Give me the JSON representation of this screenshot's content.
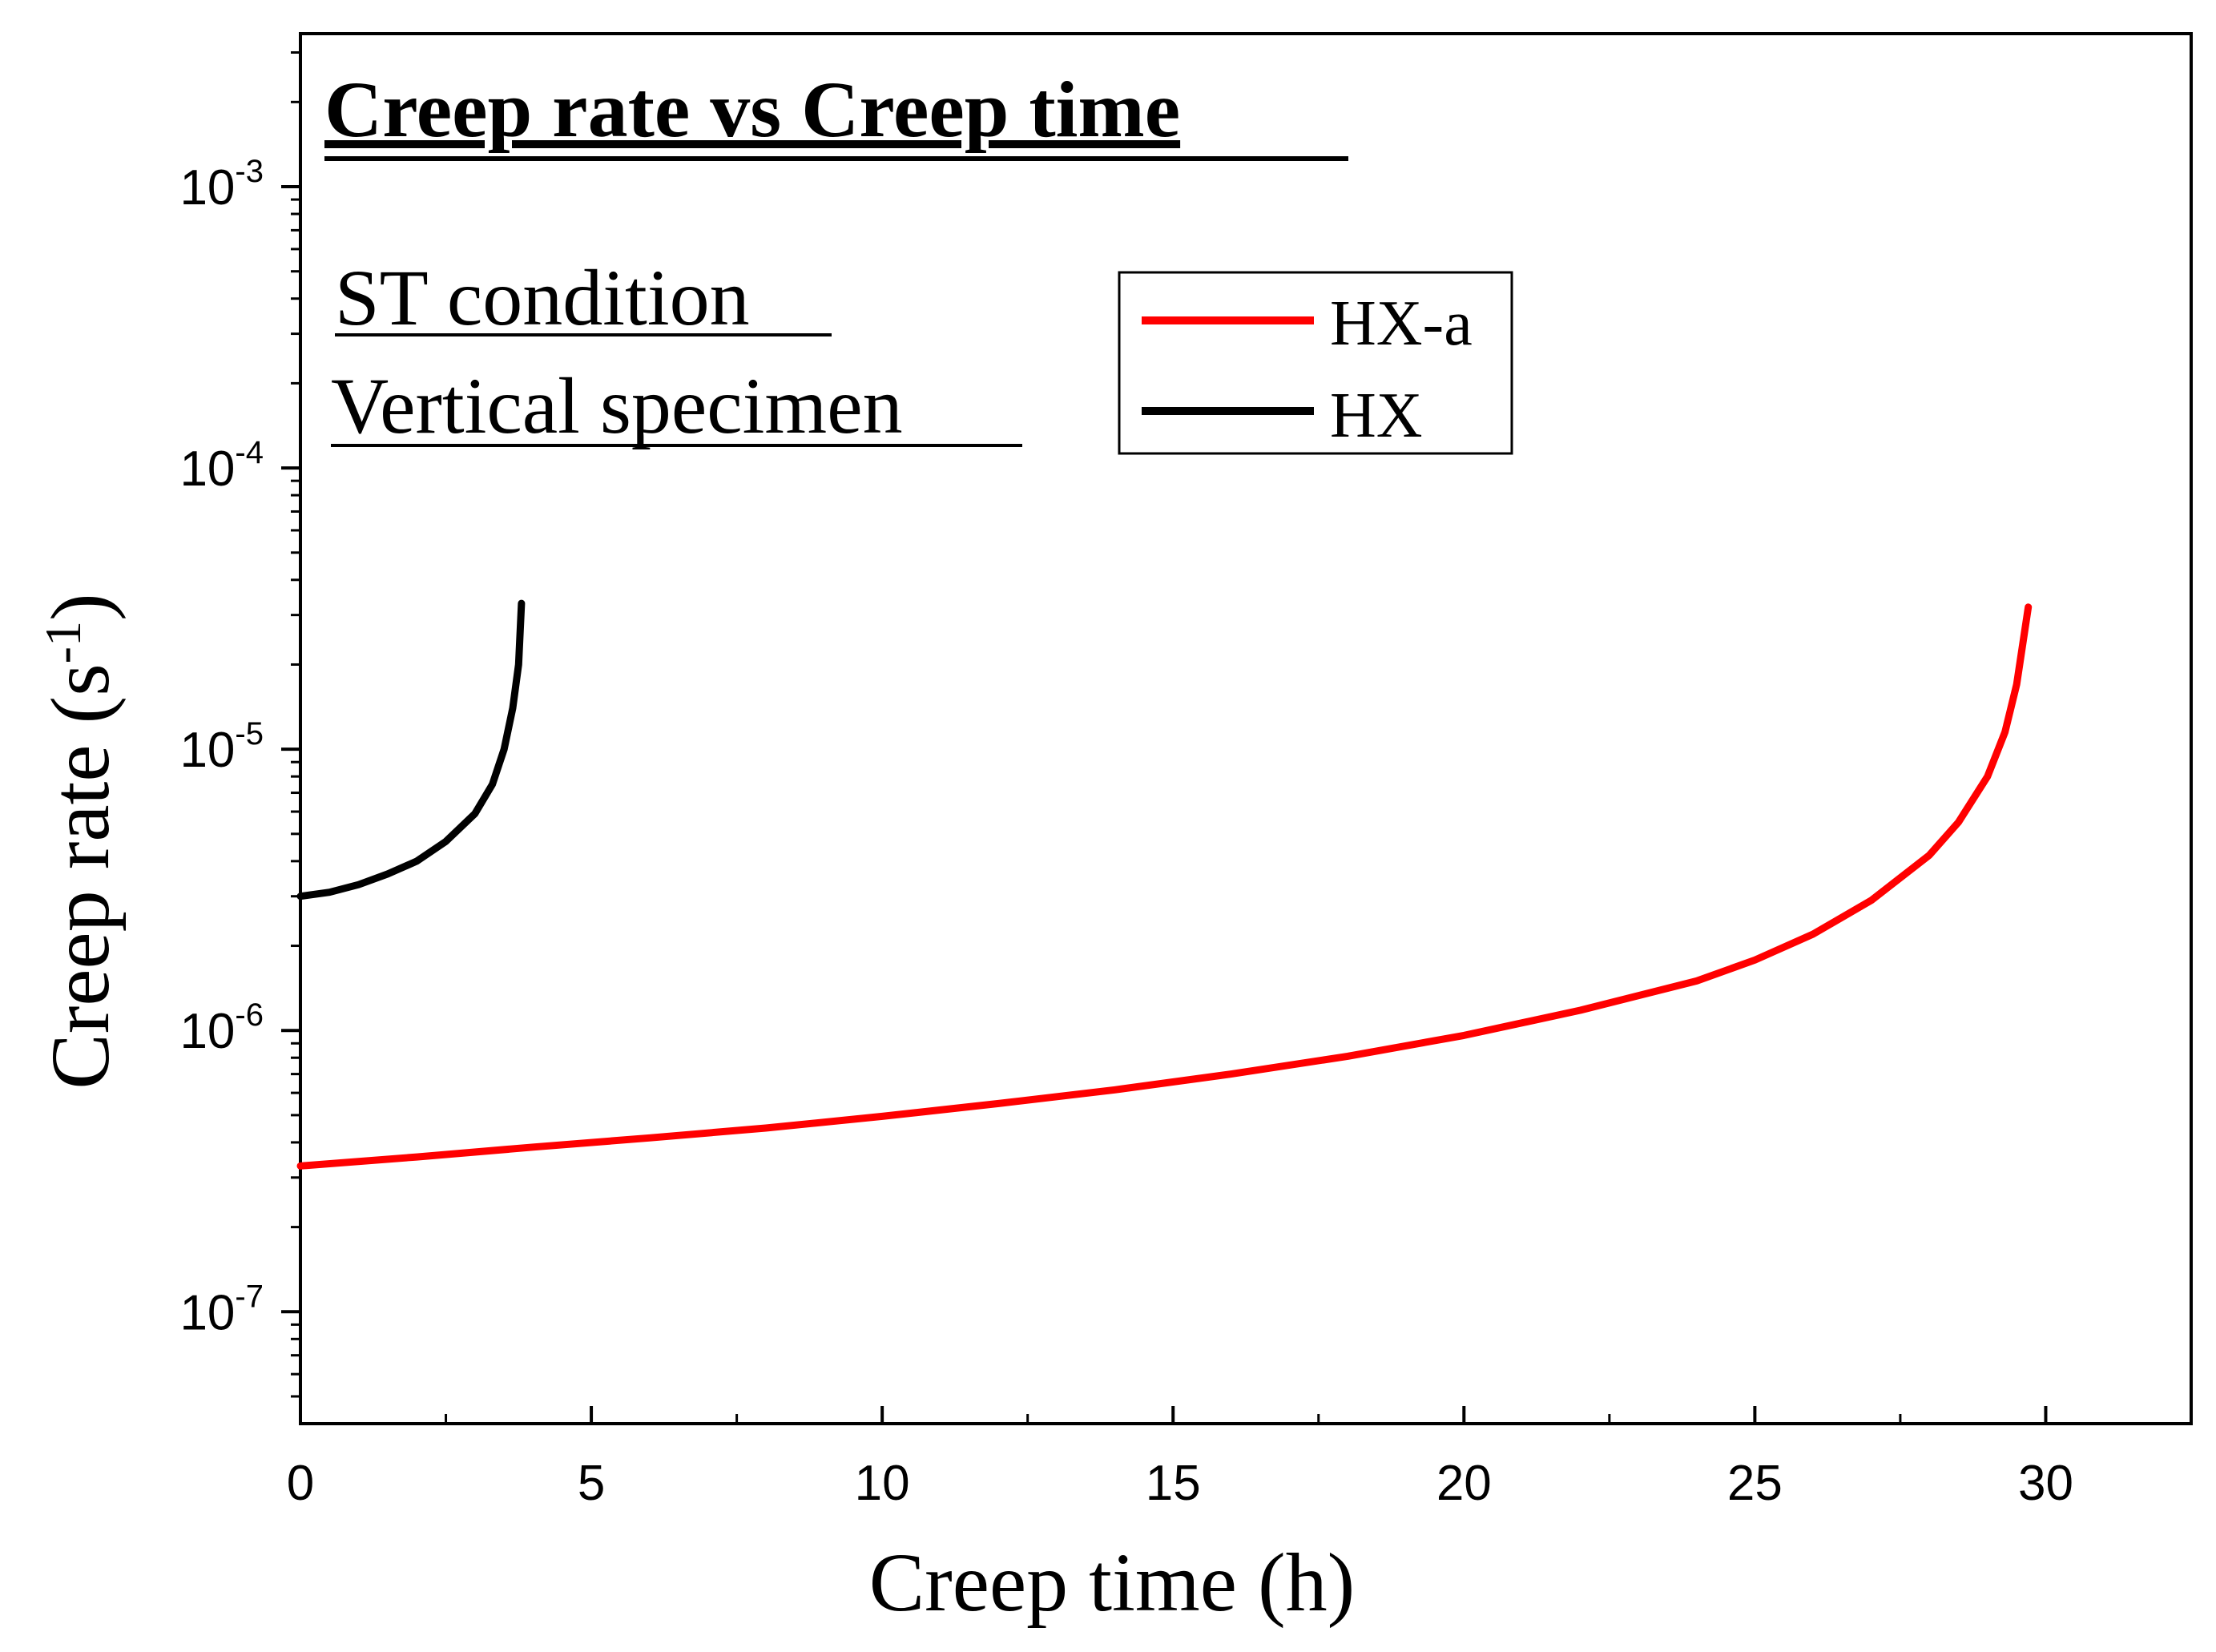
{
  "chart_data": {
    "type": "line",
    "title": "Creep rate vs Creep time",
    "annotations": [
      "ST condition",
      "Vertical specimen"
    ],
    "xlabel": "Creep time (h)",
    "ylabel": {
      "base": "Creep rate (s",
      "sup": "-1",
      "tail": ")"
    },
    "x_scale": "linear",
    "y_scale": "log",
    "xlim": [
      0,
      32.5
    ],
    "ylim": [
      4e-08,
      0.0035
    ],
    "x_ticks": [
      0,
      5,
      10,
      15,
      20,
      25,
      30
    ],
    "y_ticks": [
      {
        "value": 1e-07,
        "base": "10",
        "exp": "-7"
      },
      {
        "value": 1e-06,
        "base": "10",
        "exp": "-6"
      },
      {
        "value": 1e-05,
        "base": "10",
        "exp": "-5"
      },
      {
        "value": 0.0001,
        "base": "10",
        "exp": "-4"
      },
      {
        "value": 0.001,
        "base": "10",
        "exp": "-3"
      }
    ],
    "legend_position": "top-right",
    "series": [
      {
        "name": "HX-a",
        "color": "#ff0000",
        "x": [
          0,
          2,
          4,
          6,
          8,
          10,
          12,
          14,
          16,
          18,
          20,
          22,
          24,
          25,
          26,
          27,
          28,
          28.5,
          29,
          29.3,
          29.5,
          29.7
        ],
        "y": [
          3.3e-07,
          3.55e-07,
          3.85e-07,
          4.15e-07,
          4.5e-07,
          4.95e-07,
          5.5e-07,
          6.15e-07,
          7e-07,
          8.1e-07,
          9.6e-07,
          1.18e-06,
          1.5e-06,
          1.78e-06,
          2.2e-06,
          2.9e-06,
          4.2e-06,
          5.5e-06,
          8e-06,
          1.15e-05,
          1.7e-05,
          3.2e-05
        ]
      },
      {
        "name": "HX",
        "color": "#000000",
        "x": [
          0,
          0.5,
          1,
          1.5,
          2,
          2.5,
          3,
          3.3,
          3.5,
          3.65,
          3.75,
          3.8
        ],
        "y": [
          3e-06,
          3.1e-06,
          3.3e-06,
          3.6e-06,
          4e-06,
          4.7e-06,
          5.9e-06,
          7.5e-06,
          1e-05,
          1.4e-05,
          2e-05,
          3.3e-05
        ]
      }
    ]
  }
}
